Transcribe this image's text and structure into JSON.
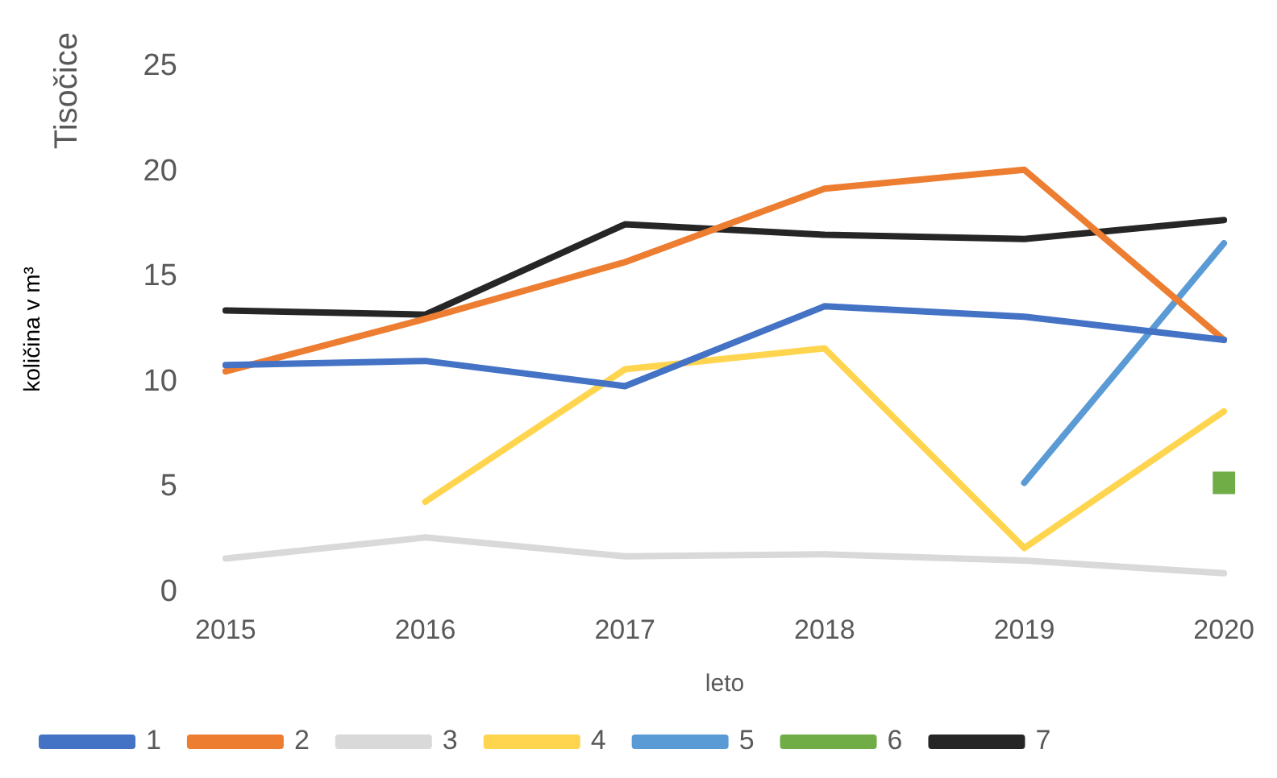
{
  "chart_data": {
    "type": "line",
    "xlabel": "leto",
    "ylabel": "količina v m³",
    "annotations": [
      "Tisočice"
    ],
    "categories": [
      "2015",
      "2016",
      "2017",
      "2018",
      "2019",
      "2020"
    ],
    "ylim": [
      0,
      25
    ],
    "yticks": [
      0,
      5,
      10,
      15,
      20,
      25
    ],
    "grid": false,
    "legend": "bottom",
    "marker": "none",
    "line_style": "solid",
    "series": [
      {
        "name": "1",
        "color": "#4472c4",
        "values": [
          10.8,
          11.0,
          9.8,
          13.6,
          13.1,
          12.0
        ]
      },
      {
        "name": "2",
        "color": "#ed7d31",
        "values": [
          10.5,
          13.0,
          15.7,
          19.2,
          20.1,
          12.0
        ]
      },
      {
        "name": "3",
        "color": "#d9d9d9",
        "values": [
          1.6,
          2.6,
          1.7,
          1.8,
          1.5,
          0.9
        ]
      },
      {
        "name": "4",
        "color": "#ffd54f",
        "values": [
          null,
          4.3,
          10.6,
          11.6,
          2.1,
          8.6
        ]
      },
      {
        "name": "5",
        "color": "#5b9bd5",
        "values": [
          null,
          null,
          null,
          null,
          5.2,
          16.6
        ]
      },
      {
        "name": "6",
        "color": "#70ad47",
        "marker": "square",
        "values": [
          null,
          null,
          null,
          null,
          null,
          5.2
        ]
      },
      {
        "name": "7",
        "color": "#262626",
        "values": [
          13.4,
          13.2,
          17.5,
          17.0,
          16.8,
          17.7
        ]
      }
    ]
  }
}
